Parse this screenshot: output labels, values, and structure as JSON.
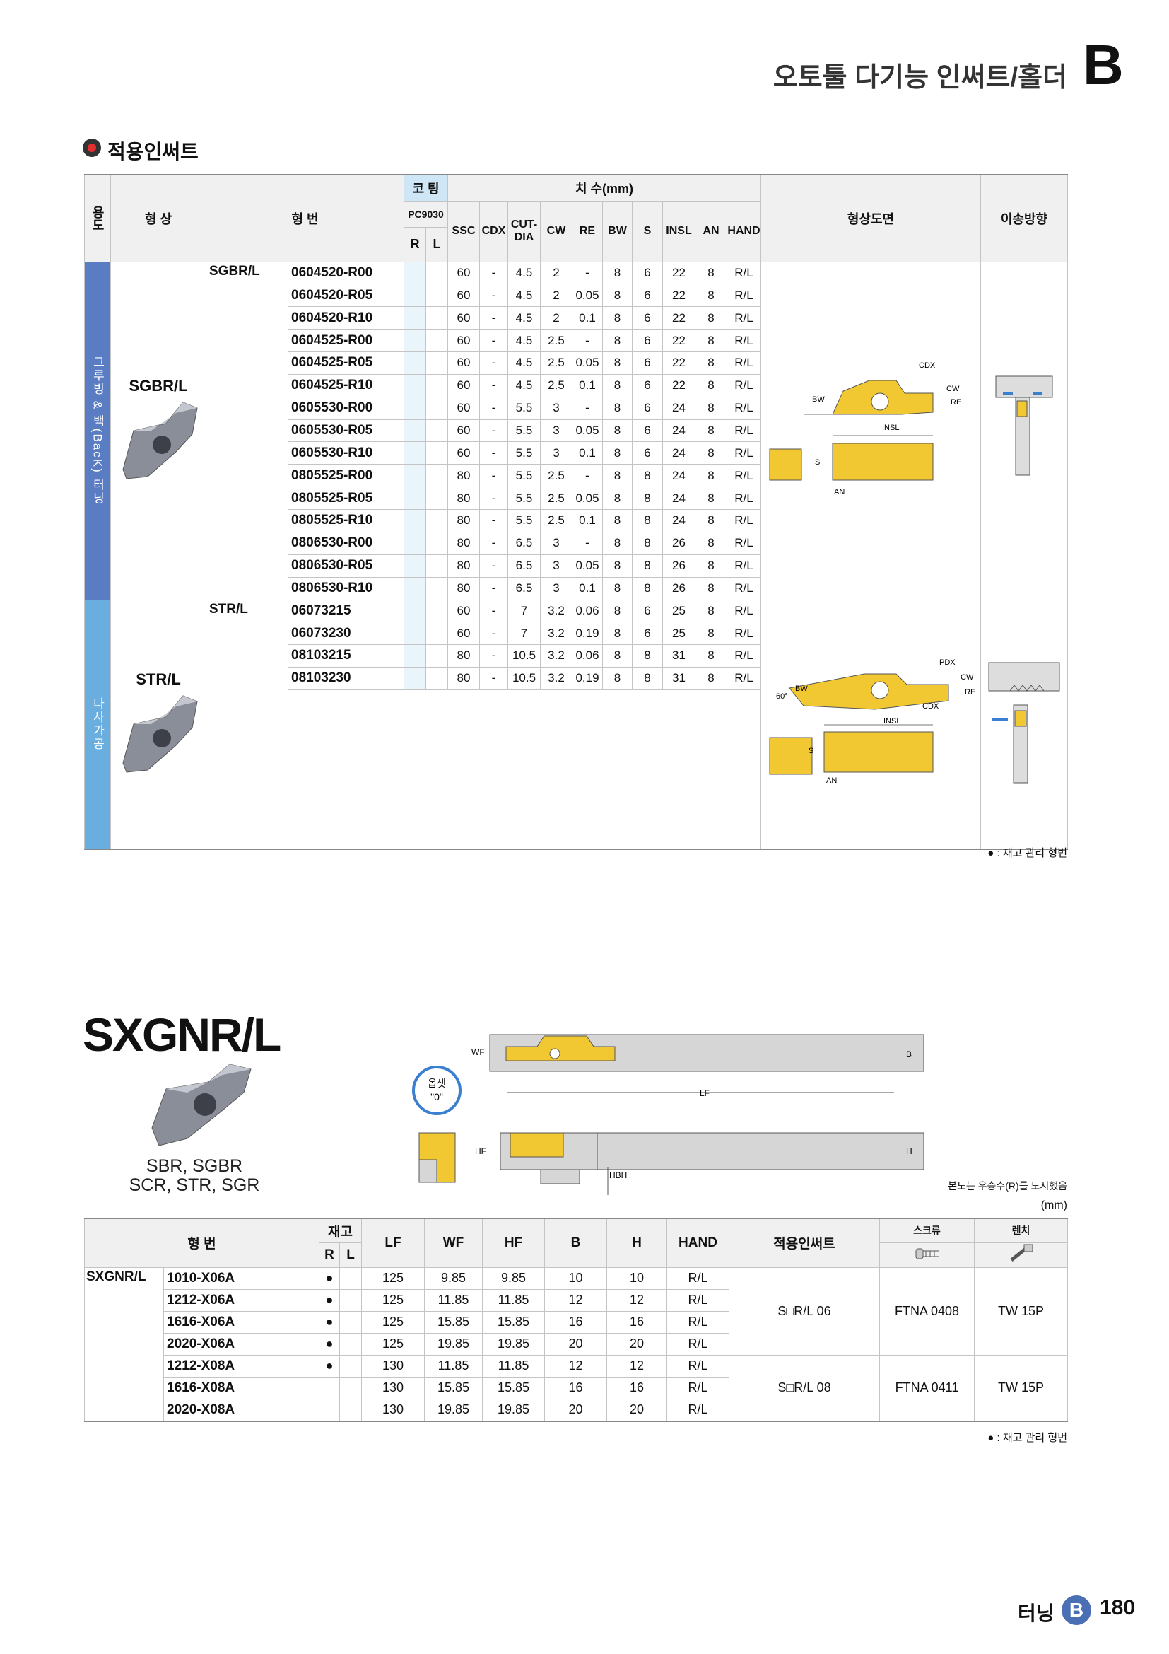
{
  "header": {
    "title": "오토툴 다기능 인써트/홀더",
    "section_letter": "B"
  },
  "insert_section": {
    "title": "적용인써트",
    "headers": {
      "use": "용도",
      "shape": "형 상",
      "model": "형 번",
      "coating": "코 팅",
      "grade": "PC9030",
      "r": "R",
      "l": "L",
      "dims": "치 수(mm)",
      "dim_cols": [
        "SSC",
        "CDX",
        "CUT-DIA",
        "CW",
        "RE",
        "BW",
        "S",
        "INSL",
        "AN",
        "HAND"
      ],
      "drawing": "형상도면",
      "feed": "이송방향"
    },
    "groups": [
      {
        "use": "그루빙 & 백(BacK) 터닝",
        "shape": "SGBR/L",
        "series": "SGBR/L",
        "drawing_labels": [
          "CDX",
          "CW",
          "RE",
          "BW",
          "INSL",
          "S",
          "AN"
        ],
        "rows": [
          [
            "0604520-R00",
            "60",
            "-",
            "4.5",
            "2",
            "-",
            "8",
            "6",
            "22",
            "8",
            "R/L"
          ],
          [
            "0604520-R05",
            "60",
            "-",
            "4.5",
            "2",
            "0.05",
            "8",
            "6",
            "22",
            "8",
            "R/L"
          ],
          [
            "0604520-R10",
            "60",
            "-",
            "4.5",
            "2",
            "0.1",
            "8",
            "6",
            "22",
            "8",
            "R/L"
          ],
          [
            "0604525-R00",
            "60",
            "-",
            "4.5",
            "2.5",
            "-",
            "8",
            "6",
            "22",
            "8",
            "R/L"
          ],
          [
            "0604525-R05",
            "60",
            "-",
            "4.5",
            "2.5",
            "0.05",
            "8",
            "6",
            "22",
            "8",
            "R/L"
          ],
          [
            "0604525-R10",
            "60",
            "-",
            "4.5",
            "2.5",
            "0.1",
            "8",
            "6",
            "22",
            "8",
            "R/L"
          ],
          [
            "0605530-R00",
            "60",
            "-",
            "5.5",
            "3",
            "-",
            "8",
            "6",
            "24",
            "8",
            "R/L"
          ],
          [
            "0605530-R05",
            "60",
            "-",
            "5.5",
            "3",
            "0.05",
            "8",
            "6",
            "24",
            "8",
            "R/L"
          ],
          [
            "0605530-R10",
            "60",
            "-",
            "5.5",
            "3",
            "0.1",
            "8",
            "6",
            "24",
            "8",
            "R/L"
          ],
          [
            "0805525-R00",
            "80",
            "-",
            "5.5",
            "2.5",
            "-",
            "8",
            "8",
            "24",
            "8",
            "R/L"
          ],
          [
            "0805525-R05",
            "80",
            "-",
            "5.5",
            "2.5",
            "0.05",
            "8",
            "8",
            "24",
            "8",
            "R/L"
          ],
          [
            "0805525-R10",
            "80",
            "-",
            "5.5",
            "2.5",
            "0.1",
            "8",
            "8",
            "24",
            "8",
            "R/L"
          ],
          [
            "0806530-R00",
            "80",
            "-",
            "6.5",
            "3",
            "-",
            "8",
            "8",
            "26",
            "8",
            "R/L"
          ],
          [
            "0806530-R05",
            "80",
            "-",
            "6.5",
            "3",
            "0.05",
            "8",
            "8",
            "26",
            "8",
            "R/L"
          ],
          [
            "0806530-R10",
            "80",
            "-",
            "6.5",
            "3",
            "0.1",
            "8",
            "8",
            "26",
            "8",
            "R/L"
          ]
        ]
      },
      {
        "use": "나사가공",
        "shape": "STR/L",
        "series": "STR/L",
        "drawing_labels": [
          "PDX",
          "CW",
          "RE",
          "BW",
          "60°",
          "CDX",
          "INSL",
          "S",
          "AN"
        ],
        "rows": [
          [
            "06073215",
            "60",
            "-",
            "7",
            "3.2",
            "0.06",
            "8",
            "6",
            "25",
            "8",
            "R/L"
          ],
          [
            "06073230",
            "60",
            "-",
            "7",
            "3.2",
            "0.19",
            "8",
            "6",
            "25",
            "8",
            "R/L"
          ],
          [
            "08103215",
            "80",
            "-",
            "10.5",
            "3.2",
            "0.06",
            "8",
            "8",
            "31",
            "8",
            "R/L"
          ],
          [
            "08103230",
            "80",
            "-",
            "10.5",
            "3.2",
            "0.19",
            "8",
            "8",
            "31",
            "8",
            "R/L"
          ]
        ]
      }
    ],
    "note": "● : 재고 관리 형번"
  },
  "holder": {
    "title": "SXGNR/L",
    "compatible": [
      "SBR, SGBR",
      "SCR, STR, SGR"
    ],
    "offset_badge": [
      "옵셋",
      "\"0\""
    ],
    "dimension_labels": [
      "WF",
      "B",
      "LF",
      "HF",
      "H",
      "HBH"
    ],
    "drawing_note": "본도는 우승수(R)를 도시했음",
    "unit": "(mm)",
    "headers": {
      "model": "형 번",
      "stock": "재고",
      "r": "R",
      "l": "L",
      "dims": [
        "LF",
        "WF",
        "HF",
        "B",
        "H",
        "HAND"
      ],
      "insert": "적용인써트",
      "screw": "스크류",
      "wrench": "렌치"
    },
    "series": "SXGNR/L",
    "insert_groups": [
      {
        "insert": "S□R/L 06",
        "screw": "FTNA 0408",
        "wrench": "TW 15P",
        "rows": [
          {
            "model": "1010-X06A",
            "stock": "●",
            "dims": [
              "125",
              "9.85",
              "9.85",
              "10",
              "10",
              "R/L"
            ]
          },
          {
            "model": "1212-X06A",
            "stock": "●",
            "dims": [
              "125",
              "11.85",
              "11.85",
              "12",
              "12",
              "R/L"
            ]
          },
          {
            "model": "1616-X06A",
            "stock": "●",
            "dims": [
              "125",
              "15.85",
              "15.85",
              "16",
              "16",
              "R/L"
            ]
          },
          {
            "model": "2020-X06A",
            "stock": "●",
            "dims": [
              "125",
              "19.85",
              "19.85",
              "20",
              "20",
              "R/L"
            ]
          }
        ]
      },
      {
        "insert": "S□R/L 08",
        "screw": "FTNA 0411",
        "wrench": "TW 15P",
        "rows": [
          {
            "model": "1212-X08A",
            "stock": "●",
            "dims": [
              "130",
              "11.85",
              "11.85",
              "12",
              "12",
              "R/L"
            ]
          },
          {
            "model": "1616-X08A",
            "dims": [
              "130",
              "15.85",
              "15.85",
              "16",
              "16",
              "R/L"
            ]
          },
          {
            "model": "2020-X08A",
            "dims": [
              "130",
              "19.85",
              "19.85",
              "20",
              "20",
              "R/L"
            ]
          }
        ]
      }
    ],
    "note": "● : 재고 관리 형번"
  },
  "footer": {
    "section": "터닝",
    "letter": "B",
    "page": "180"
  }
}
